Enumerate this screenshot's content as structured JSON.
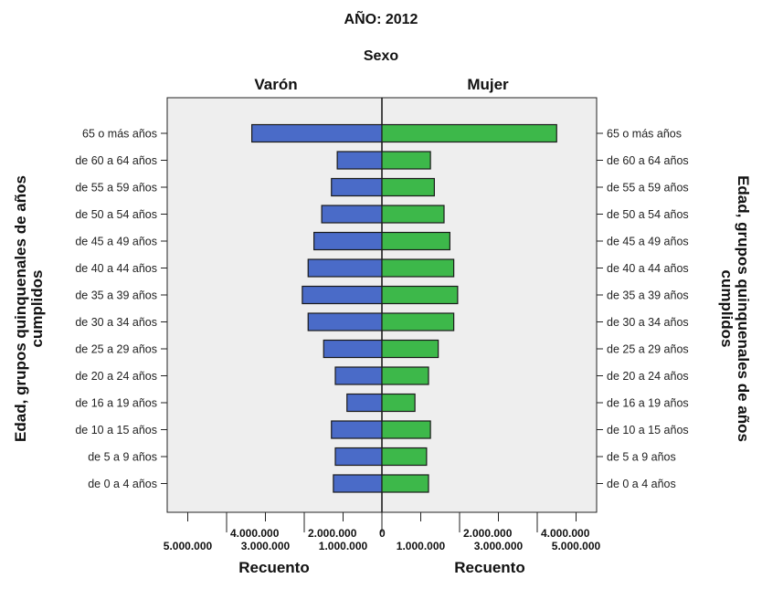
{
  "chart_data": {
    "type": "bar",
    "orientation": "horizontal",
    "layout": "population-pyramid",
    "title": "AÑO: 2012",
    "facet_title": "Sexo",
    "categories": [
      "65 o más años",
      "de 60 a 64 años",
      "de 55 a 59 años",
      "de 50 a 54 años",
      "de 45 a 49 años",
      "de 40 a 44 años",
      "de 35 a 39 años",
      "de 30 a 34 años",
      "de 25 a 29 años",
      "de 20 a 24 años",
      "de 16 a 19 años",
      "de 10 a 15 años",
      "de 5 a 9 años",
      "de 0 a 4 años"
    ],
    "series": [
      {
        "name": "Varón",
        "color": "#4a6bc8",
        "values": [
          3350000,
          1150000,
          1300000,
          1550000,
          1750000,
          1900000,
          2050000,
          1900000,
          1500000,
          1200000,
          900000,
          1300000,
          1200000,
          1250000
        ]
      },
      {
        "name": "Mujer",
        "color": "#3db84a",
        "values": [
          4500000,
          1250000,
          1350000,
          1600000,
          1750000,
          1850000,
          1950000,
          1850000,
          1450000,
          1200000,
          850000,
          1250000,
          1150000,
          1200000
        ]
      }
    ],
    "xlim": [
      0,
      5000000
    ],
    "x_ticks_upper": [
      "4.000.000",
      "2.000.000",
      "0",
      "2.000.000",
      "4.000.000"
    ],
    "x_ticks_lower": [
      "5.000.000",
      "3.000.000",
      "1.000.000",
      "1.000.000",
      "3.000.000",
      "5.000.000"
    ],
    "xlabel": "Recuento",
    "ylabel": "Edad, grupos quinquenales de años cumplidos",
    "ylabel_line1": "Edad, grupos quinquenales de años",
    "ylabel_line2": "cumplidos",
    "grid": false
  }
}
